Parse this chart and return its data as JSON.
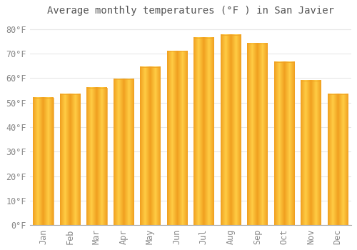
{
  "title": "Average monthly temperatures (°F ) in San Javier",
  "months": [
    "Jan",
    "Feb",
    "Mar",
    "Apr",
    "May",
    "Jun",
    "Jul",
    "Aug",
    "Sep",
    "Oct",
    "Nov",
    "Dec"
  ],
  "values": [
    52,
    53.5,
    56,
    59.5,
    64.5,
    71,
    76.5,
    77.5,
    74,
    66.5,
    59,
    53.5
  ],
  "bar_color_center": "#FFCC44",
  "bar_color_edge": "#F0A020",
  "background_color": "#FFFFFF",
  "grid_color": "#E8E8E8",
  "title_fontsize": 10,
  "tick_fontsize": 8.5,
  "ylim": [
    0,
    83
  ],
  "yticks": [
    0,
    10,
    20,
    30,
    40,
    50,
    60,
    70,
    80
  ]
}
